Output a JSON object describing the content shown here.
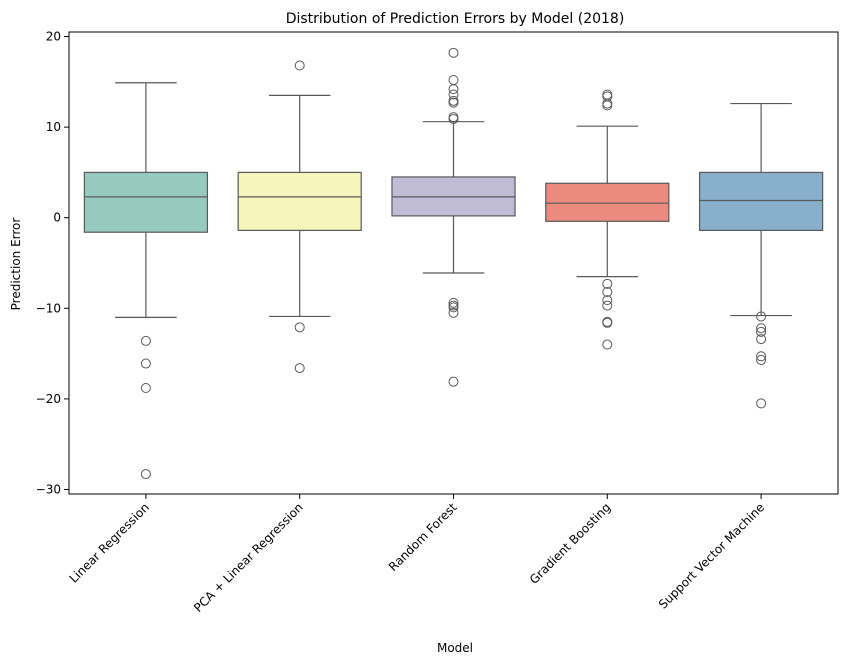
{
  "chart_data": {
    "type": "box",
    "title": "Distribution of Prediction Errors by Model (2018)",
    "xlabel": "Model",
    "ylabel": "Prediction Error",
    "ylim": [
      -30.5,
      20.5
    ],
    "yticks": [
      20,
      10,
      0,
      -10,
      -20,
      -30
    ],
    "ytick_labels": [
      "20",
      "10",
      "0",
      "−10",
      "−20",
      "−30"
    ],
    "grid": false,
    "categories": [
      "Linear Regression",
      "PCA + Linear Regression",
      "Random Forest",
      "Gradient Boosting",
      "Support Vector Machine"
    ],
    "colors": [
      "#96cac1",
      "#f6f6bc",
      "#c0bcd6",
      "#eb8b80",
      "#88afcc"
    ],
    "series": [
      {
        "whisker_low": -11.0,
        "q1": -1.6,
        "median": 2.3,
        "q3": 5.0,
        "whisker_high": 14.9,
        "outliers": [
          -13.6,
          -16.1,
          -18.8,
          -28.3
        ]
      },
      {
        "whisker_low": -10.9,
        "q1": -1.4,
        "median": 2.3,
        "q3": 5.0,
        "whisker_high": 13.5,
        "outliers": [
          16.8,
          -12.1,
          -16.6
        ]
      },
      {
        "whisker_low": -6.1,
        "q1": 0.2,
        "median": 2.3,
        "q3": 4.5,
        "whisker_high": 10.6,
        "outliers": [
          18.2,
          15.2,
          14.2,
          13.6,
          12.9,
          12.7,
          11.1,
          10.9,
          -9.4,
          -9.7,
          -9.9,
          -10.5,
          -18.1
        ]
      },
      {
        "whisker_low": -6.5,
        "q1": -0.4,
        "median": 1.6,
        "q3": 3.8,
        "whisker_high": 10.1,
        "outliers": [
          13.6,
          13.4,
          12.6,
          12.4,
          -7.3,
          -8.2,
          -9.1,
          -9.7,
          -11.5,
          -11.6,
          -14.0
        ]
      },
      {
        "whisker_low": -10.8,
        "q1": -1.4,
        "median": 1.9,
        "q3": 5.0,
        "whisker_high": 12.6,
        "outliers": [
          -10.9,
          -12.2,
          -12.6,
          -13.4,
          -15.3,
          -15.7,
          -20.5
        ]
      }
    ]
  }
}
